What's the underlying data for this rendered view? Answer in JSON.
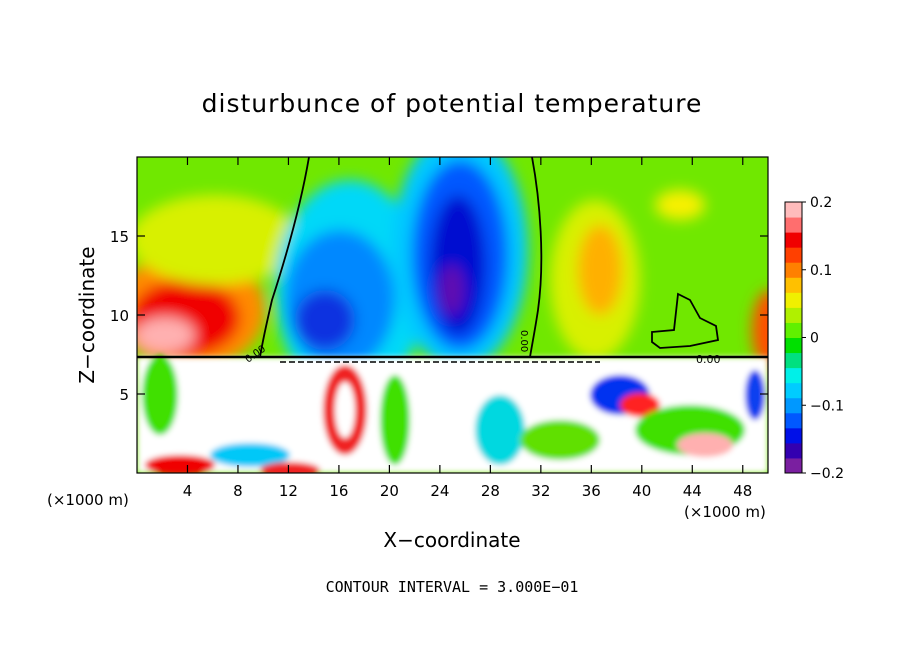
{
  "chart_data": {
    "type": "heatmap",
    "title": "disturbunce of potential temperature",
    "xlabel": "X−coordinate",
    "ylabel": "Z−coordinate",
    "x_unit": "(×1000 m)",
    "x_unit_right": "(×1000 m)",
    "xlim": [
      0,
      50
    ],
    "ylim": [
      0,
      20
    ],
    "x_ticks": [
      4,
      8,
      12,
      16,
      20,
      24,
      28,
      32,
      36,
      40,
      44,
      48
    ],
    "x_tick_labels": [
      "4",
      "8",
      "12",
      "16",
      "20",
      "24",
      "28",
      "32",
      "36",
      "40",
      "44",
      "48"
    ],
    "y_ticks": [
      5,
      10,
      15
    ],
    "y_tick_labels": [
      "5",
      "10",
      "15"
    ],
    "colorbar": {
      "range": [
        -0.2,
        0.2
      ],
      "ticks": [
        0.2,
        0.1,
        0,
        -0.1,
        -0.2
      ],
      "tick_labels": [
        "0.2",
        "0.1",
        "0",
        "−0.1",
        "−0.2"
      ],
      "colors": [
        "#7a1fa0",
        "#3300b0",
        "#0010e8",
        "#0058ff",
        "#0098ff",
        "#00ccff",
        "#00f0e8",
        "#00e080",
        "#00e000",
        "#60f000",
        "#b0f000",
        "#f0f000",
        "#ffc000",
        "#ff8000",
        "#ff4000",
        "#f00000",
        "#ff6e6e",
        "#ffbcbc"
      ]
    },
    "contour_interval_text": "CONTOUR INTERVAL = 3.000E−01",
    "contour_labels": [
      "0.00",
      "0.00",
      "0.00"
    ]
  }
}
